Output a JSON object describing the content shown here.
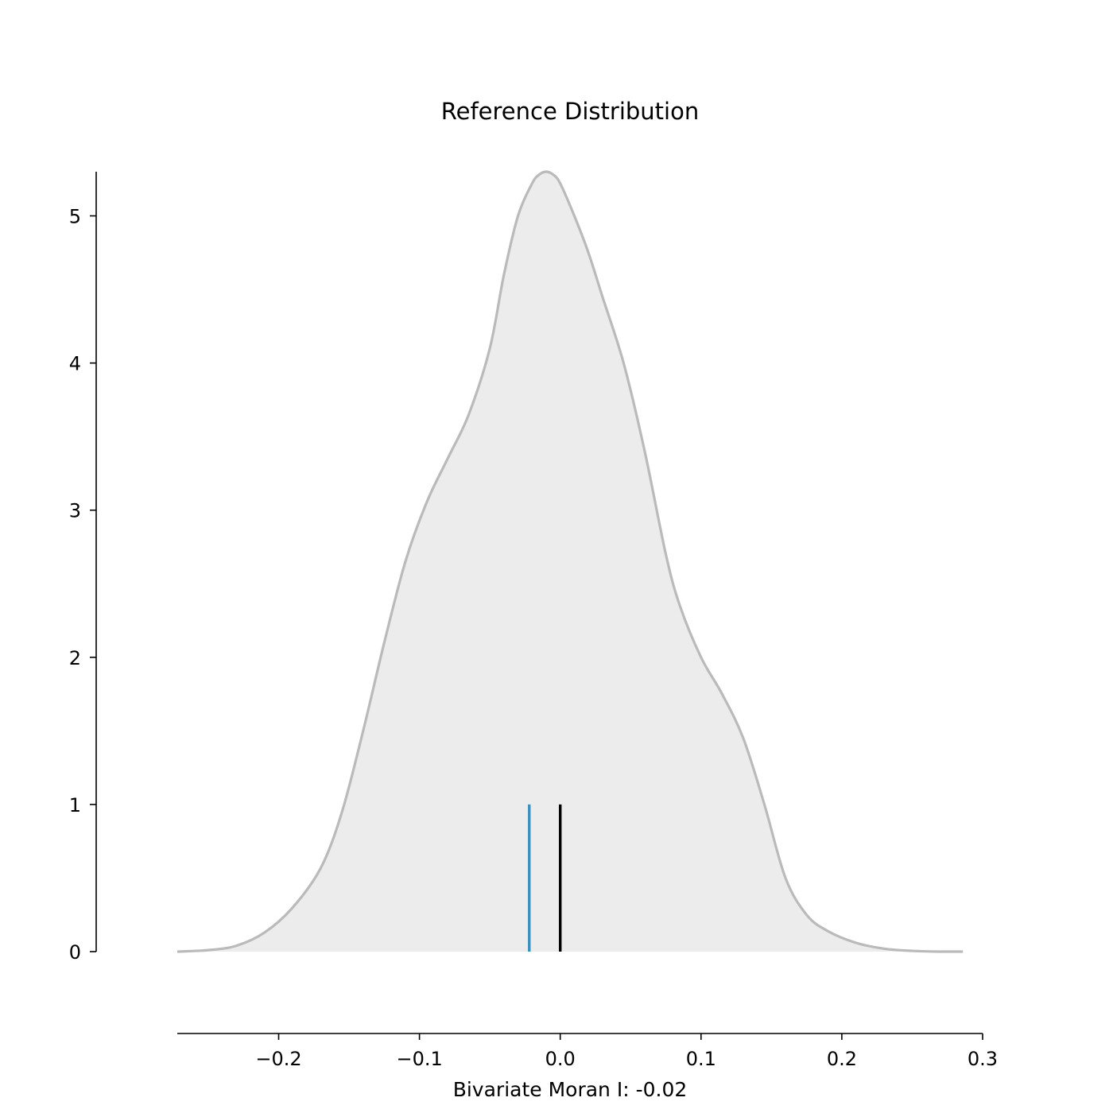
{
  "chart_data": {
    "type": "area",
    "title": "Reference Distribution",
    "xlabel": "Bivariate Moran I: -0.02",
    "ylabel": "",
    "xlim": [
      -0.272,
      0.3
    ],
    "ylim": [
      0,
      5.3
    ],
    "x_ticks": [
      -0.2,
      -0.1,
      0.0,
      0.1,
      0.2,
      0.3
    ],
    "x_tick_labels": [
      "−0.2",
      "−0.1",
      "0.0",
      "0.1",
      "0.2",
      "0.3"
    ],
    "y_ticks": [
      0,
      1,
      2,
      3,
      4,
      5
    ],
    "y_tick_labels": [
      "0",
      "1",
      "2",
      "3",
      "4",
      "5"
    ],
    "grid": false,
    "density": {
      "x": [
        -0.272,
        -0.25,
        -0.23,
        -0.21,
        -0.19,
        -0.17,
        -0.155,
        -0.14,
        -0.125,
        -0.11,
        -0.095,
        -0.08,
        -0.065,
        -0.05,
        -0.04,
        -0.03,
        -0.02,
        -0.015,
        -0.01,
        -0.005,
        0.0,
        0.01,
        0.02,
        0.03,
        0.045,
        0.06,
        0.075,
        0.085,
        0.1,
        0.115,
        0.13,
        0.145,
        0.16,
        0.175,
        0.19,
        0.21,
        0.23,
        0.25,
        0.27,
        0.286
      ],
      "y": [
        0.0,
        0.01,
        0.04,
        0.13,
        0.3,
        0.57,
        0.95,
        1.5,
        2.1,
        2.65,
        3.05,
        3.35,
        3.65,
        4.1,
        4.6,
        5.0,
        5.22,
        5.28,
        5.3,
        5.28,
        5.22,
        5.0,
        4.75,
        4.45,
        4.0,
        3.4,
        2.7,
        2.35,
        2.0,
        1.75,
        1.45,
        1.0,
        0.5,
        0.25,
        0.14,
        0.06,
        0.02,
        0.005,
        0.0,
        0.0
      ],
      "fill_color": "#ececec",
      "line_color": "#bababa"
    },
    "reference_lines": [
      {
        "x": -0.022,
        "y_top": 1.0,
        "color": "#3a8fbd"
      },
      {
        "x": 0.0,
        "y_top": 1.0,
        "color": "#000000"
      }
    ]
  }
}
